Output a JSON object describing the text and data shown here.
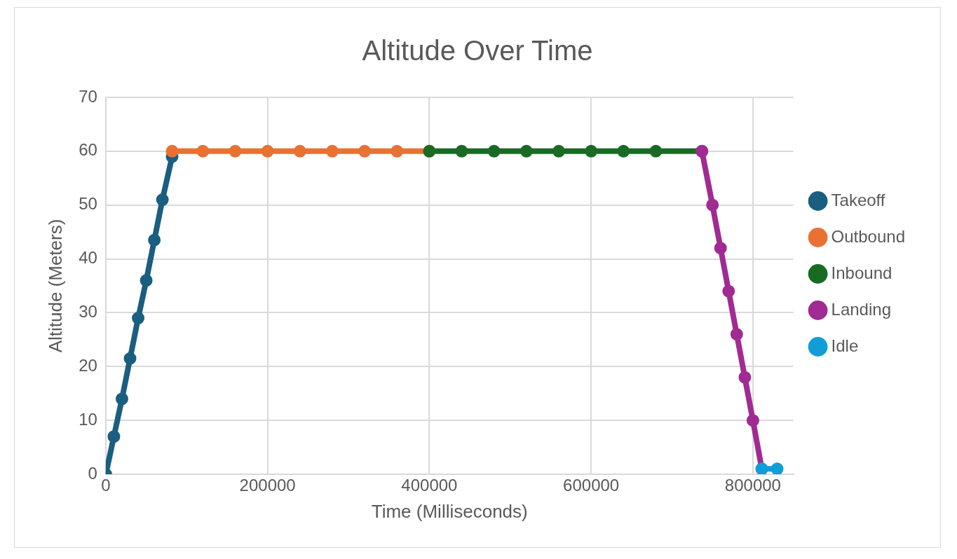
{
  "chart_data": {
    "type": "line",
    "title": "Altitude Over Time",
    "xlabel": "Time (Milliseconds)",
    "ylabel": "Altitude (Meters)",
    "series": [
      {
        "name": "Takeoff",
        "color": "#1a5e80",
        "x": [
          0,
          10000,
          20000,
          30000,
          40000,
          50000,
          60000,
          70000,
          82000
        ],
        "values": [
          0,
          7,
          14,
          21.5,
          29,
          36,
          43.5,
          51,
          59
        ]
      },
      {
        "name": "Outbound",
        "color": "#e97132",
        "x": [
          82000,
          120000,
          160000,
          200000,
          240000,
          280000,
          320000,
          360000,
          400000
        ],
        "values": [
          60,
          60,
          60,
          60,
          60,
          60,
          60,
          60,
          60
        ]
      },
      {
        "name": "Inbound",
        "color": "#196b24",
        "x": [
          400000,
          440000,
          480000,
          520000,
          560000,
          600000,
          640000,
          680000,
          737000
        ],
        "values": [
          60,
          60,
          60,
          60,
          60,
          60,
          60,
          60,
          60
        ]
      },
      {
        "name": "Landing",
        "color": "#a02b93",
        "x": [
          737000,
          750000,
          760000,
          770000,
          780000,
          790000,
          800000,
          811000
        ],
        "values": [
          60,
          50,
          42,
          34,
          26,
          18,
          10,
          1
        ]
      },
      {
        "name": "Idle",
        "color": "#0f9ed5",
        "x": [
          811000,
          830000
        ],
        "values": [
          1,
          1
        ]
      }
    ],
    "xlim": [
      0,
      850000
    ],
    "xticks": [
      0,
      200000,
      400000,
      600000,
      800000
    ],
    "ylim": [
      0,
      70
    ],
    "yticks": [
      0,
      10,
      20,
      30,
      40,
      50,
      60,
      70
    ],
    "grid": true,
    "legend": "right",
    "marker": "circle",
    "line_style": "solid"
  }
}
